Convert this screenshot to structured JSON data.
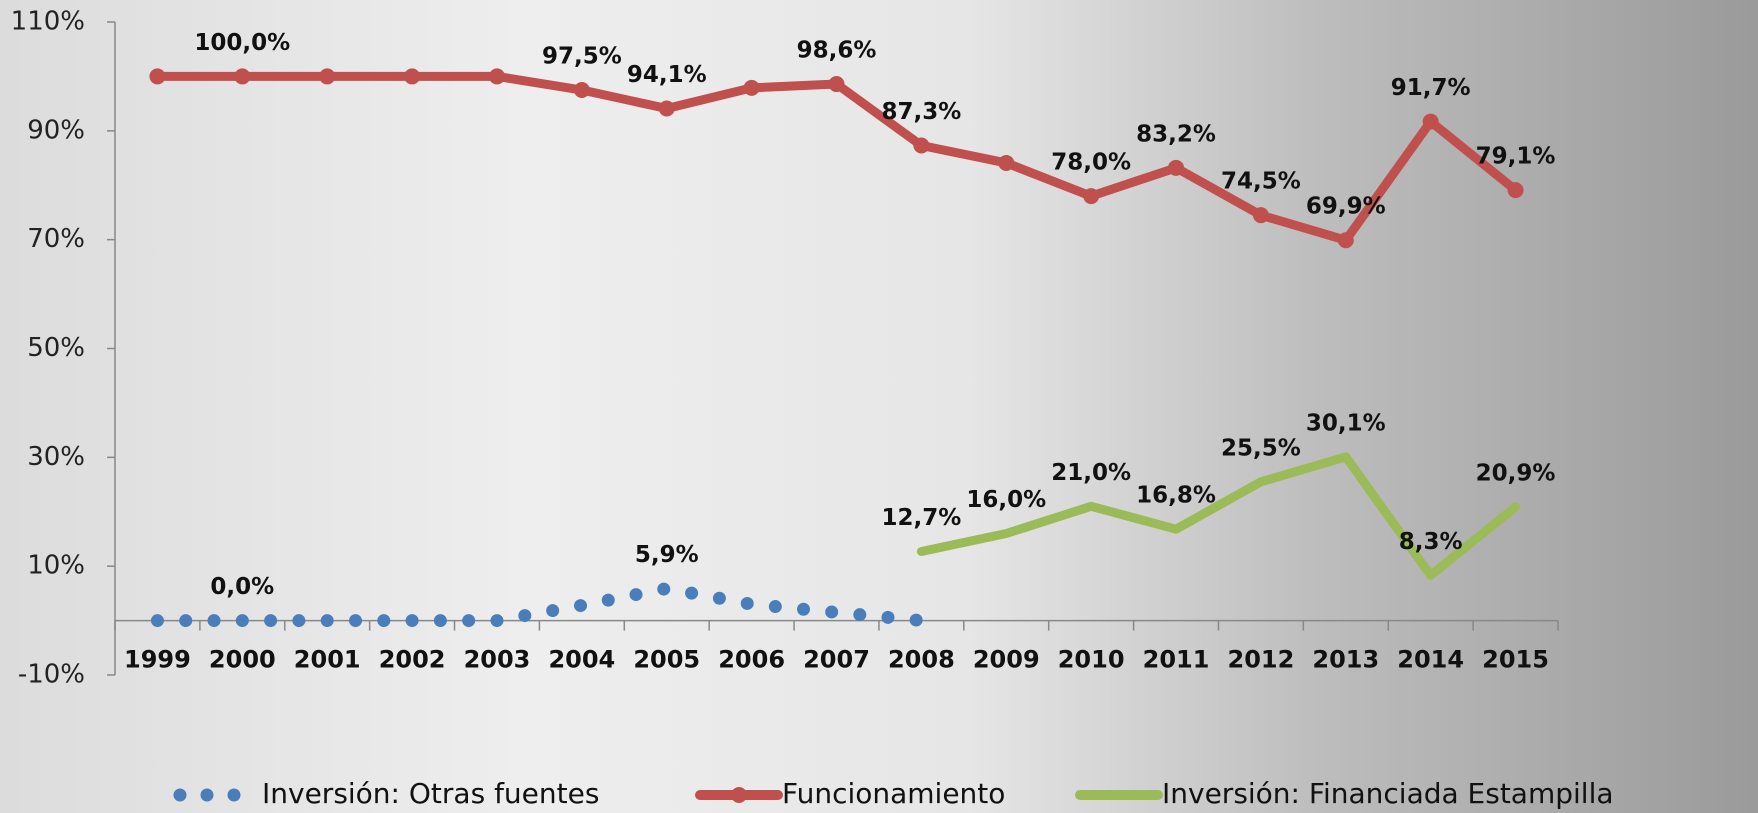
{
  "chart_data": {
    "type": "line",
    "categories": [
      "1999",
      "2000",
      "2001",
      "2002",
      "2003",
      "2004",
      "2005",
      "2006",
      "2007",
      "2008",
      "2009",
      "2010",
      "2011",
      "2012",
      "2013",
      "2014",
      "2015"
    ],
    "series": [
      {
        "name": "Inversión: Otras fuentes",
        "color": "#4a7ebb",
        "style": "dotted",
        "values": [
          0,
          0,
          0,
          0,
          0,
          2.8,
          5.9,
          3.0,
          1.5,
          0,
          null,
          null,
          null,
          null,
          null,
          null,
          null
        ],
        "value_labels": [
          null,
          "0,0%",
          null,
          null,
          null,
          null,
          "5,9%",
          null,
          null,
          null,
          null,
          null,
          null,
          null,
          null,
          null,
          null
        ]
      },
      {
        "name": "Funcionamiento",
        "color": "#c0504d",
        "style": "solid-markers",
        "values": [
          100,
          100,
          100,
          100,
          100,
          97.5,
          94.1,
          97.9,
          98.6,
          87.3,
          84.1,
          78.0,
          83.2,
          74.5,
          69.9,
          91.7,
          79.1
        ],
        "value_labels": [
          null,
          "100,0%",
          null,
          null,
          null,
          "97,5%",
          "94,1%",
          null,
          "98,6%",
          "87,3%",
          null,
          "78,0%",
          "83,2%",
          "74,5%",
          "69,9%",
          "91,7%",
          "79,1%"
        ]
      },
      {
        "name": "Inversión: Financiada Estampilla",
        "color": "#9bbb59",
        "style": "solid",
        "values": [
          null,
          null,
          null,
          null,
          null,
          null,
          null,
          null,
          null,
          12.7,
          16.0,
          21.0,
          16.8,
          25.5,
          30.1,
          8.3,
          20.9
        ],
        "value_labels": [
          null,
          null,
          null,
          null,
          null,
          null,
          null,
          null,
          null,
          "12,7%",
          "16,0%",
          "21,0%",
          "16,8%",
          "25,5%",
          "30,1%",
          "8,3%",
          "20,9%"
        ]
      }
    ],
    "ylim": [
      -10,
      110
    ],
    "yticks": [
      {
        "value": 110,
        "label": "110%"
      },
      {
        "value": 90,
        "label": "90%"
      },
      {
        "value": 70,
        "label": "70%"
      },
      {
        "value": 50,
        "label": "50%"
      },
      {
        "value": 30,
        "label": "30%"
      },
      {
        "value": 10,
        "label": "10%"
      },
      {
        "value": -10,
        "label": "-10%"
      }
    ],
    "legend_position": "bottom",
    "grid": false
  }
}
